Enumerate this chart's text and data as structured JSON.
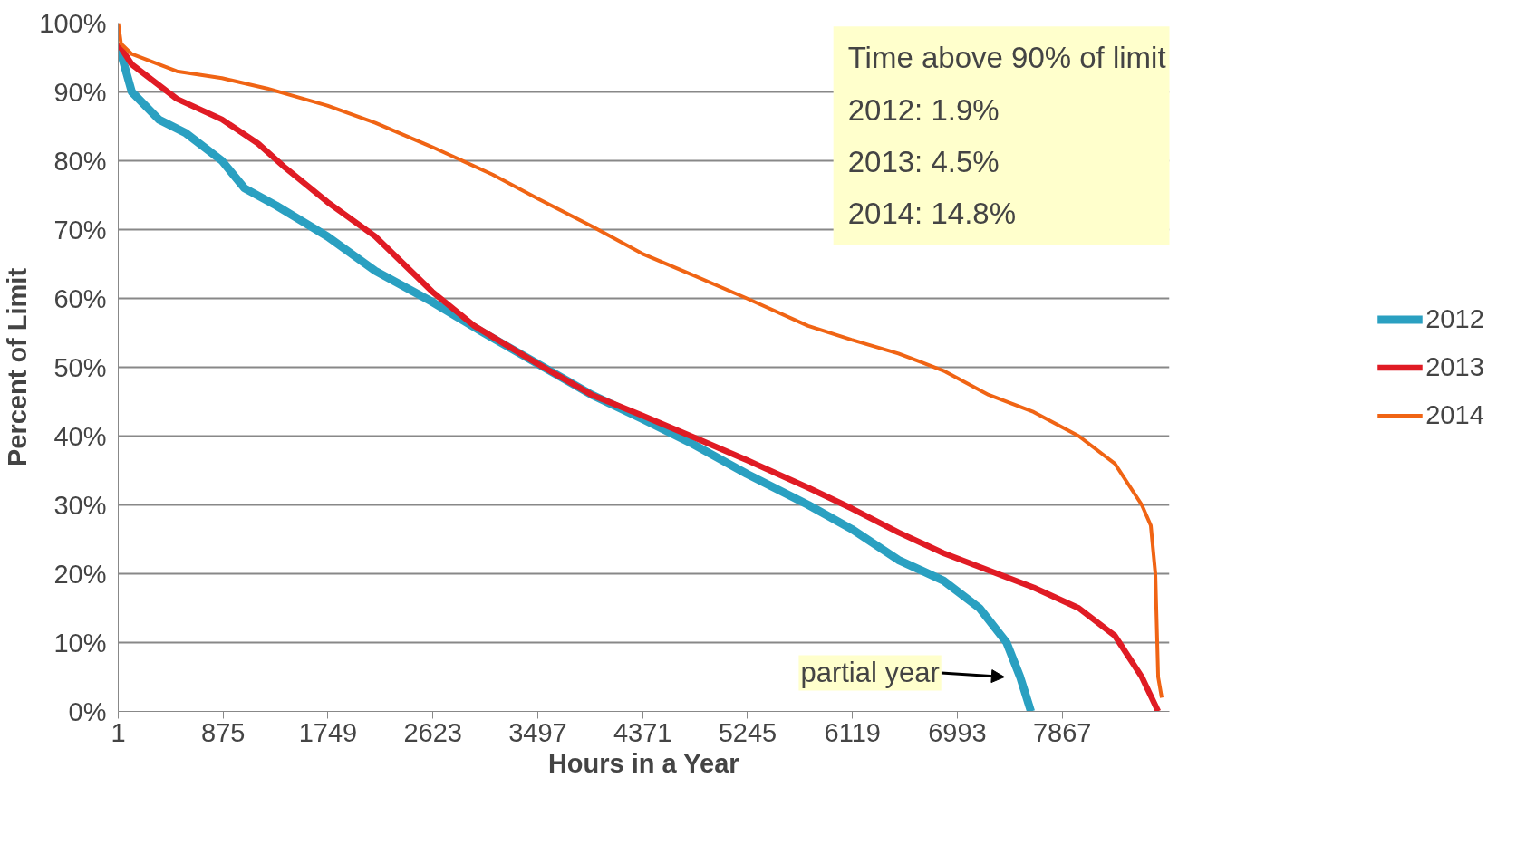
{
  "chart_data": {
    "type": "line",
    "xlabel": "Hours in a Year",
    "ylabel": "Percent of Limit",
    "xlim": [
      1,
      8760
    ],
    "ylim": [
      0,
      100
    ],
    "xticks": [
      1,
      875,
      1749,
      2623,
      3497,
      4371,
      5245,
      6119,
      6993,
      7867
    ],
    "yticks": [
      {
        "value": 0,
        "label": "0%"
      },
      {
        "value": 10,
        "label": "10%"
      },
      {
        "value": 20,
        "label": "20%"
      },
      {
        "value": 30,
        "label": "30%"
      },
      {
        "value": 40,
        "label": "40%"
      },
      {
        "value": 50,
        "label": "50%"
      },
      {
        "value": 60,
        "label": "60%"
      },
      {
        "value": 70,
        "label": "70%"
      },
      {
        "value": 80,
        "label": "80%"
      },
      {
        "value": 90,
        "label": "90%"
      },
      {
        "value": 100,
        "label": "100%"
      }
    ],
    "grid": "y",
    "legend": "right",
    "marker": "none",
    "line_style": "solid",
    "series": [
      {
        "name": "2012",
        "color": "#2aa0c1",
        "x": [
          1,
          114,
          339,
          565,
          865,
          1053,
          1316,
          1744,
          2143,
          2616,
          3045,
          3496,
          3946,
          4367,
          4773,
          5239,
          5750,
          6111,
          6502,
          6877,
          7178,
          7403,
          7516,
          7606
        ],
        "values": [
          97,
          90,
          86,
          84,
          80,
          76,
          73.5,
          69,
          64,
          59.5,
          55,
          50.5,
          46,
          42.5,
          39,
          34.5,
          30,
          26.5,
          22,
          19,
          15,
          10,
          5,
          0
        ]
      },
      {
        "name": "2013",
        "color": "#e01b24",
        "x": [
          1,
          114,
          489,
          865,
          1166,
          1391,
          1744,
          2143,
          2616,
          2969,
          3496,
          3946,
          4367,
          4773,
          5239,
          5750,
          6111,
          6502,
          6877,
          7253,
          7629,
          8005,
          8305,
          8530,
          8666
        ],
        "values": [
          97,
          94,
          89,
          86,
          82.5,
          79,
          74,
          69,
          61,
          56,
          50.5,
          46,
          43,
          40,
          36.5,
          32.5,
          29.5,
          26,
          23,
          20.5,
          18,
          15,
          11,
          5,
          0
        ]
      },
      {
        "name": "2014",
        "color": "#f06414",
        "x": [
          1,
          24,
          114,
          489,
          865,
          1241,
          1744,
          2143,
          2616,
          3120,
          3496,
          3946,
          4367,
          4773,
          5239,
          5750,
          6111,
          6502,
          6877,
          7253,
          7629,
          8005,
          8305,
          8530,
          8605,
          8643,
          8666,
          8696
        ],
        "values": [
          100,
          97,
          95.5,
          93,
          92,
          90.5,
          88,
          85.5,
          82,
          78,
          74.5,
          70.5,
          66.5,
          63.5,
          60,
          56,
          54,
          52,
          49.5,
          46,
          43.5,
          40,
          36,
          30,
          27,
          20,
          5,
          2
        ]
      }
    ],
    "annotations": [
      "Time above 90% of limit",
      "2012: 1.9%",
      "2013: 4.5%",
      "2014: 14.8%",
      {
        "text": "partial year",
        "x": 7516,
        "y": 5
      }
    ]
  }
}
